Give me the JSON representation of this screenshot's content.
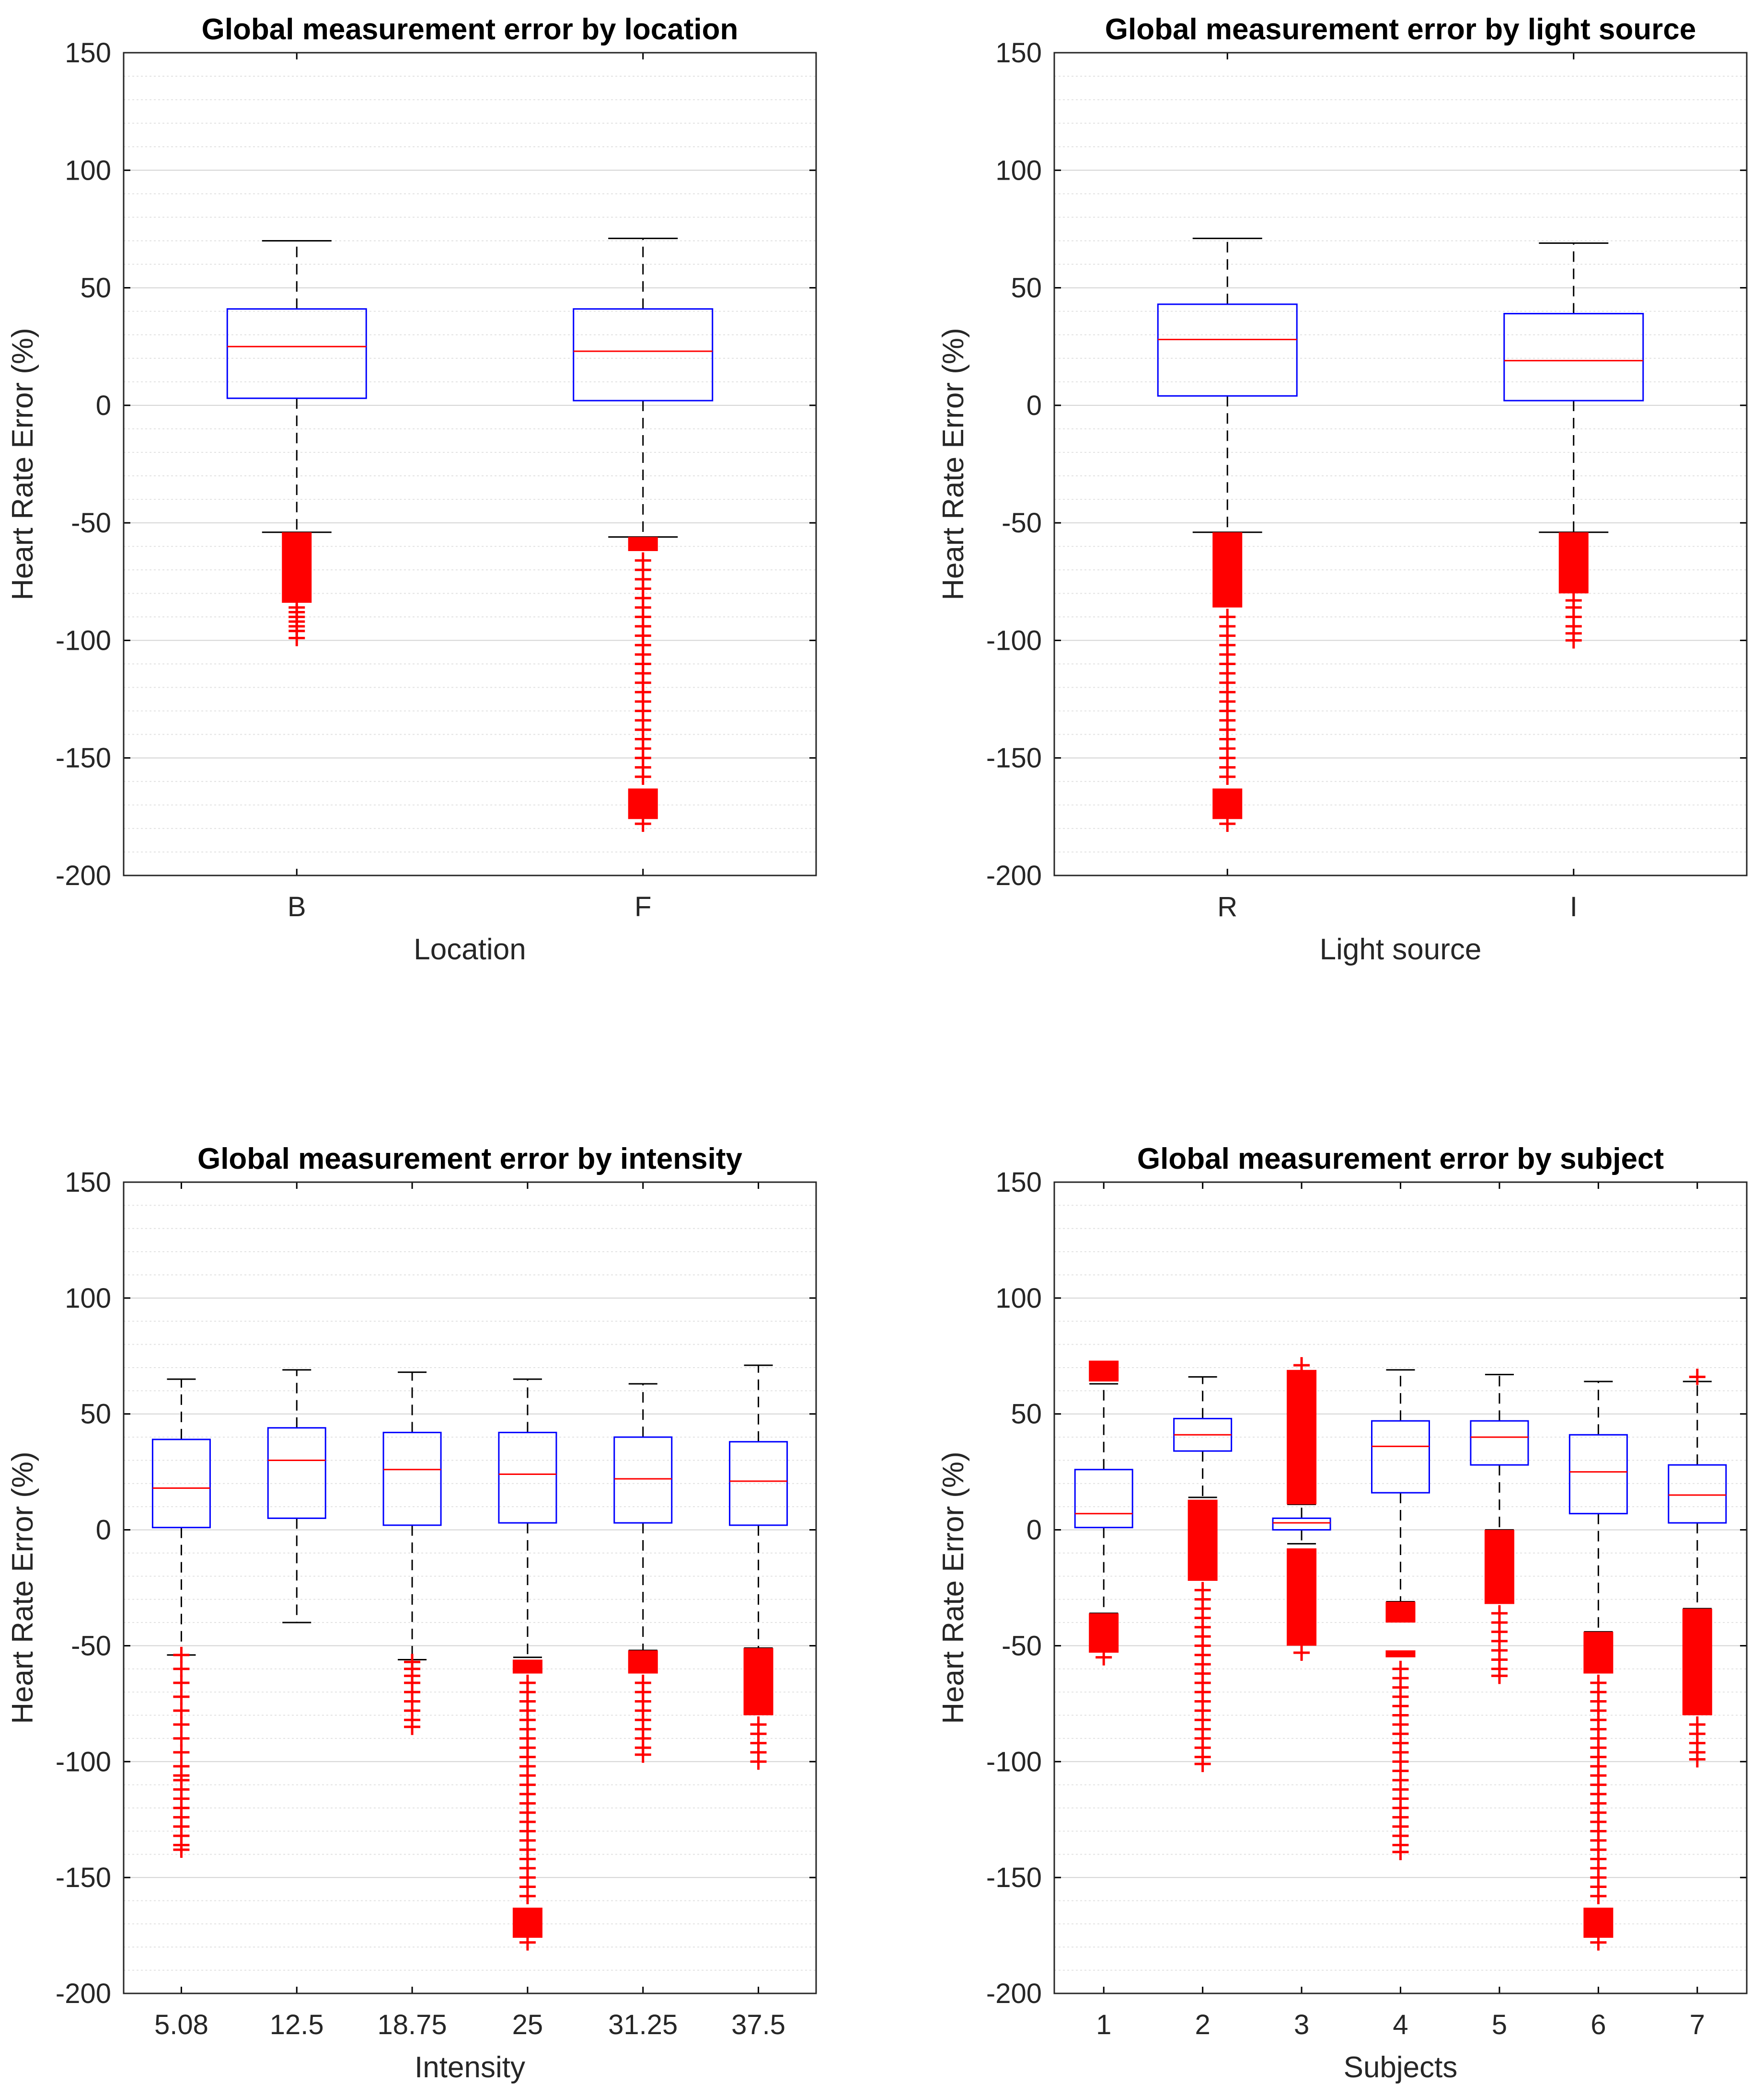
{
  "figure": {
    "layout": "2x2 grid"
  },
  "chart_data": [
    {
      "id": "location",
      "type": "box",
      "title": "Global measurement error by location",
      "xlabel": "Location",
      "ylabel": "Heart Rate Error (%)",
      "ylim": [
        -200,
        150
      ],
      "yticks": [
        150,
        100,
        50,
        0,
        -50,
        -100,
        -150,
        -200
      ],
      "categories": [
        "B",
        "F"
      ],
      "boxes": [
        {
          "q1": 3,
          "median": 25,
          "q3": 41,
          "whisker_low": -54,
          "whisker_high": 70,
          "outlier_blocks": [
            [
              -54,
              -84
            ]
          ],
          "outliers": [
            -86,
            -88,
            -90,
            -92,
            -94,
            -96,
            -99
          ]
        },
        {
          "q1": 2,
          "median": 23,
          "q3": 41,
          "whisker_low": -56,
          "whisker_high": 71,
          "outlier_blocks": [
            [
              -56,
              -62
            ],
            [
              -163,
              -176
            ]
          ],
          "outliers": [
            -66,
            -70,
            -74,
            -78,
            -82,
            -86,
            -90,
            -94,
            -98,
            -102,
            -106,
            -110,
            -114,
            -118,
            -122,
            -126,
            -130,
            -134,
            -138,
            -142,
            -146,
            -150,
            -154,
            -158,
            -178
          ]
        }
      ]
    },
    {
      "id": "light-source",
      "type": "box",
      "title": "Global measurement error by light source",
      "xlabel": "Light source",
      "ylabel": "Heart Rate Error (%)",
      "ylim": [
        -200,
        150
      ],
      "yticks": [
        150,
        100,
        50,
        0,
        -50,
        -100,
        -150,
        -200
      ],
      "categories": [
        "R",
        "I"
      ],
      "boxes": [
        {
          "q1": 4,
          "median": 28,
          "q3": 43,
          "whisker_low": -54,
          "whisker_high": 71,
          "outlier_blocks": [
            [
              -54,
              -86
            ],
            [
              -163,
              -176
            ]
          ],
          "outliers": [
            -90,
            -94,
            -98,
            -102,
            -106,
            -110,
            -114,
            -118,
            -122,
            -126,
            -130,
            -134,
            -138,
            -142,
            -146,
            -150,
            -154,
            -158,
            -178
          ]
        },
        {
          "q1": 2,
          "median": 19,
          "q3": 39,
          "whisker_low": -54,
          "whisker_high": 69,
          "outlier_blocks": [
            [
              -54,
              -80
            ]
          ],
          "outliers": [
            -83,
            -86,
            -90,
            -94,
            -97,
            -100
          ]
        }
      ]
    },
    {
      "id": "intensity",
      "type": "box",
      "title": "Global measurement error by intensity",
      "xlabel": "Intensity",
      "ylabel": "Heart Rate Error (%)",
      "ylim": [
        -200,
        150
      ],
      "yticks": [
        150,
        100,
        50,
        0,
        -50,
        -100,
        -150,
        -200
      ],
      "categories": [
        "5.08",
        "12.5",
        "18.75",
        "25",
        "31.25",
        "37.5"
      ],
      "boxes": [
        {
          "q1": 1,
          "median": 18,
          "q3": 39,
          "whisker_low": -54,
          "whisker_high": 65,
          "outlier_blocks": [],
          "outliers": [
            -54,
            -60,
            -66,
            -72,
            -78,
            -84,
            -90,
            -96,
            -102,
            -106,
            -108,
            -112,
            -116,
            -120,
            -124,
            -128,
            -132,
            -136,
            -138
          ]
        },
        {
          "q1": 5,
          "median": 30,
          "q3": 44,
          "whisker_low": -40,
          "whisker_high": 69,
          "outlier_blocks": [],
          "outliers": []
        },
        {
          "q1": 2,
          "median": 26,
          "q3": 42,
          "whisker_low": -56,
          "whisker_high": 68,
          "outlier_blocks": [],
          "outliers": [
            -57,
            -60,
            -63,
            -66,
            -70,
            -74,
            -78,
            -82,
            -85
          ]
        },
        {
          "q1": 3,
          "median": 24,
          "q3": 42,
          "whisker_low": -55,
          "whisker_high": 65,
          "outlier_blocks": [
            [
              -56,
              -62
            ],
            [
              -163,
              -176
            ]
          ],
          "outliers": [
            -66,
            -70,
            -74,
            -78,
            -82,
            -86,
            -90,
            -94,
            -98,
            -102,
            -106,
            -110,
            -114,
            -118,
            -122,
            -126,
            -130,
            -134,
            -138,
            -142,
            -146,
            -150,
            -154,
            -158,
            -178
          ]
        },
        {
          "q1": 3,
          "median": 22,
          "q3": 40,
          "whisker_low": -52,
          "whisker_high": 63,
          "outlier_blocks": [
            [
              -52,
              -62
            ]
          ],
          "outliers": [
            -66,
            -70,
            -74,
            -78,
            -82,
            -86,
            -90,
            -94,
            -97
          ]
        },
        {
          "q1": 2,
          "median": 21,
          "q3": 38,
          "whisker_low": -51,
          "whisker_high": 71,
          "outlier_blocks": [
            [
              -51,
              -80
            ]
          ],
          "outliers": [
            -84,
            -88,
            -92,
            -96,
            -100
          ]
        }
      ]
    },
    {
      "id": "subject",
      "type": "box",
      "title": "Global measurement error by subject",
      "xlabel": "Subjects",
      "ylabel": "Heart Rate Error (%)",
      "ylim": [
        -200,
        150
      ],
      "yticks": [
        150,
        100,
        50,
        0,
        -50,
        -100,
        -150,
        -200
      ],
      "categories": [
        "1",
        "2",
        "3",
        "4",
        "5",
        "6",
        "7"
      ],
      "boxes": [
        {
          "q1": 1,
          "median": 7,
          "q3": 26,
          "whisker_low": -36,
          "whisker_high": 63,
          "outlier_blocks": [
            [
              -36,
              -53
            ],
            [
              64,
              73
            ]
          ],
          "outliers": [
            -55
          ]
        },
        {
          "q1": 34,
          "median": 41,
          "q3": 48,
          "whisker_low": 14,
          "whisker_high": 66,
          "outlier_blocks": [
            [
              13,
              -22
            ]
          ],
          "outliers": [
            -26,
            -30,
            -34,
            -38,
            -42,
            -46,
            -50,
            -54,
            -58,
            -62,
            -66,
            -70,
            -74,
            -78,
            -82,
            -86,
            -90,
            -94,
            -98,
            -101
          ]
        },
        {
          "q1": 0,
          "median": 3,
          "q3": 5,
          "whisker_low": -6,
          "whisker_high": 11,
          "outlier_blocks": [
            [
              11,
              69
            ],
            [
              -8,
              -50
            ]
          ],
          "outliers": [
            71,
            -53
          ]
        },
        {
          "q1": 16,
          "median": 36,
          "q3": 47,
          "whisker_low": -31,
          "whisker_high": 69,
          "outlier_blocks": [
            [
              -31,
              -40
            ],
            [
              -52,
              -55
            ]
          ],
          "outliers": [
            -60,
            -64,
            -68,
            -72,
            -76,
            -80,
            -84,
            -88,
            -92,
            -96,
            -100,
            -104,
            -108,
            -112,
            -116,
            -120,
            -124,
            -128,
            -132,
            -136,
            -139
          ]
        },
        {
          "q1": 28,
          "median": 40,
          "q3": 47,
          "whisker_low": 0,
          "whisker_high": 67,
          "outlier_blocks": [
            [
              0,
              -32
            ]
          ],
          "outliers": [
            -36,
            -40,
            -44,
            -48,
            -52,
            -56,
            -60,
            -63
          ]
        },
        {
          "q1": 7,
          "median": 25,
          "q3": 41,
          "whisker_low": -44,
          "whisker_high": 64,
          "outlier_blocks": [
            [
              -44,
              -62
            ],
            [
              -163,
              -176
            ]
          ],
          "outliers": [
            -66,
            -70,
            -74,
            -78,
            -82,
            -86,
            -90,
            -94,
            -98,
            -102,
            -106,
            -110,
            -114,
            -118,
            -122,
            -126,
            -130,
            -134,
            -138,
            -142,
            -146,
            -150,
            -154,
            -158,
            -178
          ]
        },
        {
          "q1": 3,
          "median": 15,
          "q3": 28,
          "whisker_low": -34,
          "whisker_high": 64,
          "outlier_blocks": [
            [
              -34,
              -80
            ]
          ],
          "outliers": [
            66,
            -84,
            -88,
            -92,
            -96,
            -99
          ]
        }
      ]
    }
  ]
}
